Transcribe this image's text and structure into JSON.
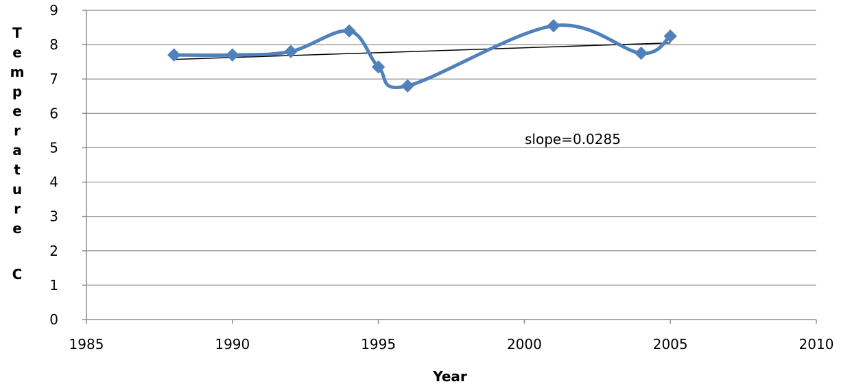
{
  "chart_data": {
    "type": "scatter",
    "xlabel": "Year",
    "ylabel": "Temperature C",
    "xlim": [
      1985,
      2010
    ],
    "ylim": [
      0,
      9
    ],
    "x_ticks": [
      "1985",
      "1990",
      "1995",
      "2000",
      "2005",
      "2010"
    ],
    "y_ticks": [
      "0",
      "1",
      "2",
      "3",
      "4",
      "5",
      "6",
      "7",
      "8",
      "9"
    ],
    "grid": "horizontal",
    "series": [
      {
        "style": "smoothed line with diamond markers",
        "color": "#4f81bd",
        "x": [
          1988,
          1990,
          1992,
          1994,
          1995,
          1996,
          2001,
          2004,
          2005
        ],
        "y": [
          7.7,
          7.7,
          7.8,
          8.4,
          7.35,
          6.8,
          8.55,
          7.75,
          8.25
        ]
      }
    ],
    "trendline": {
      "color": "#000000",
      "x": [
        1988,
        2005
      ],
      "y": [
        7.57,
        8.05
      ]
    },
    "annotation": "slope=0.0285"
  }
}
